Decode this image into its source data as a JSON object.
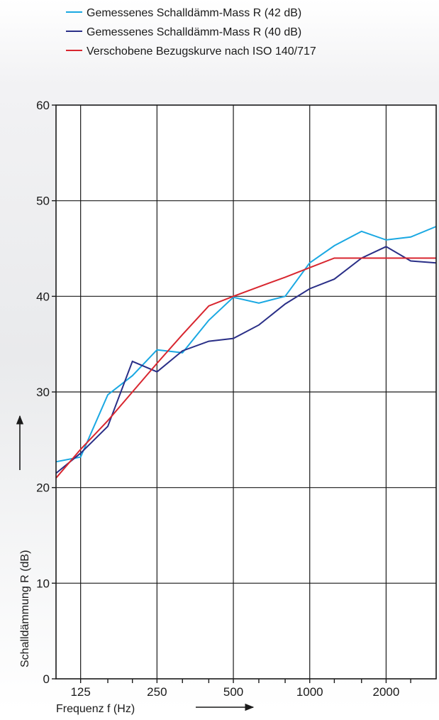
{
  "chart_data": {
    "type": "line",
    "title": "",
    "xlabel": "Frequenz f (Hz)",
    "ylabel": "Schalldämmung R (dB)",
    "x_scale": "log",
    "xlim": [
      100,
      3150
    ],
    "ylim": [
      0,
      60
    ],
    "grid": true,
    "legend_position": "top",
    "x_tick_labels": [
      {
        "x": 125,
        "label": "125"
      },
      {
        "x": 250,
        "label": "250"
      },
      {
        "x": 500,
        "label": "500"
      },
      {
        "x": 1000,
        "label": "1000"
      },
      {
        "x": 2000,
        "label": "2000"
      }
    ],
    "x_gridlines": [
      125,
      250,
      500,
      1000,
      2000
    ],
    "x_minor_ticks": [
      160,
      200,
      315,
      400,
      630,
      800,
      1250,
      1600,
      2500
    ],
    "y_ticks": [
      0,
      10,
      20,
      30,
      40,
      50,
      60
    ],
    "y_tick_labels": [
      "0",
      "10",
      "20",
      "30",
      "40",
      "50",
      "60"
    ],
    "series": [
      {
        "name": "Gemessenes Schalldämm-Mass R (42 dB)",
        "color": "#1aa8e2",
        "x": [
          100,
          125,
          160,
          200,
          250,
          315,
          400,
          500,
          630,
          800,
          1000,
          1250,
          1600,
          2000,
          2500,
          3150
        ],
        "y": [
          22.7,
          23.2,
          29.7,
          31.7,
          34.4,
          34.1,
          37.5,
          39.9,
          39.3,
          40.0,
          43.5,
          45.3,
          46.8,
          45.9,
          46.2,
          47.3
        ]
      },
      {
        "name": "Gemessenes Schalldämm-Mass R (40 dB)",
        "color": "#2a2f87",
        "x": [
          100,
          125,
          160,
          200,
          250,
          315,
          400,
          500,
          630,
          800,
          1000,
          1250,
          1600,
          2000,
          2500,
          3150
        ],
        "y": [
          21.5,
          23.6,
          26.4,
          33.2,
          32.1,
          34.3,
          35.3,
          35.6,
          37.0,
          39.2,
          40.8,
          41.8,
          44.0,
          45.2,
          43.7,
          43.5
        ]
      },
      {
        "name": "Verschobene Bezugskurve nach ISO 140/717",
        "color": "#d8262f",
        "x": [
          100,
          125,
          160,
          200,
          250,
          315,
          400,
          500,
          630,
          800,
          1000,
          1250,
          1600,
          2000,
          2500,
          3150
        ],
        "y": [
          21,
          24,
          27,
          30,
          33,
          36,
          39,
          40,
          41,
          42,
          43,
          44,
          44,
          44,
          44,
          44
        ]
      }
    ]
  }
}
